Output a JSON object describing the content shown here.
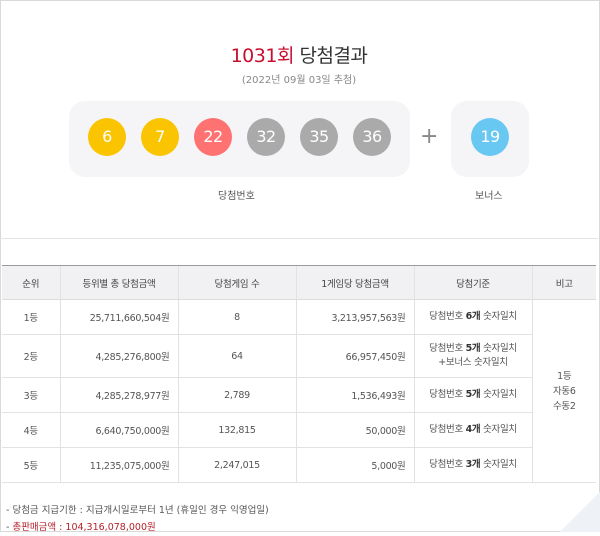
{
  "header": {
    "round": "1031회",
    "title_suffix": "당첨결과",
    "draw_date": "(2022년 09월 03일 추첨)"
  },
  "winning_numbers": {
    "label": "당첨번호",
    "balls": [
      {
        "value": "6",
        "color": "#fbc400"
      },
      {
        "value": "7",
        "color": "#fbc400"
      },
      {
        "value": "22",
        "color": "#ff7272"
      },
      {
        "value": "32",
        "color": "#aaaaaa"
      },
      {
        "value": "35",
        "color": "#aaaaaa"
      },
      {
        "value": "36",
        "color": "#aaaaaa"
      }
    ],
    "plus": "+",
    "bonus": {
      "value": "19",
      "color": "#69c8f2"
    },
    "bonus_label": "보너스"
  },
  "table": {
    "headers": [
      "순위",
      "등위별 총 당첨금액",
      "당첨게임 수",
      "1게임당 당첨금액",
      "당첨기준",
      "비고"
    ],
    "rows": [
      {
        "rank": "1등",
        "total": "25,711,660,504원",
        "games": "8",
        "per_game": "3,213,957,563원",
        "crit_pre": "당첨번호 ",
        "crit_bold": "6개",
        "crit_post": " 숫자일치",
        "crit_line2": ""
      },
      {
        "rank": "2등",
        "total": "4,285,276,800원",
        "games": "64",
        "per_game": "66,957,450원",
        "crit_pre": "당첨번호 ",
        "crit_bold": "5개",
        "crit_post": " 숫자일치",
        "crit_line2": "+보너스 숫자일치"
      },
      {
        "rank": "3등",
        "total": "4,285,278,977원",
        "games": "2,789",
        "per_game": "1,536,493원",
        "crit_pre": "당첨번호 ",
        "crit_bold": "5개",
        "crit_post": " 숫자일치",
        "crit_line2": ""
      },
      {
        "rank": "4등",
        "total": "6,640,750,000원",
        "games": "132,815",
        "per_game": "50,000원",
        "crit_pre": "당첨번호 ",
        "crit_bold": "4개",
        "crit_post": " 숫자일치",
        "crit_line2": ""
      },
      {
        "rank": "5등",
        "total": "11,235,075,000원",
        "games": "2,247,015",
        "per_game": "5,000원",
        "crit_pre": "당첨번호 ",
        "crit_bold": "3개",
        "crit_post": " 숫자일치",
        "crit_line2": ""
      }
    ],
    "remark_lines": [
      "1등",
      "자동6",
      "수동2"
    ]
  },
  "footer": {
    "deadline": "당첨금 지급기한 : 지급개시일로부터 1년 (휴일인 경우 익영업일)",
    "total_sales": "총판매금액 : 104,316,078,000원"
  }
}
